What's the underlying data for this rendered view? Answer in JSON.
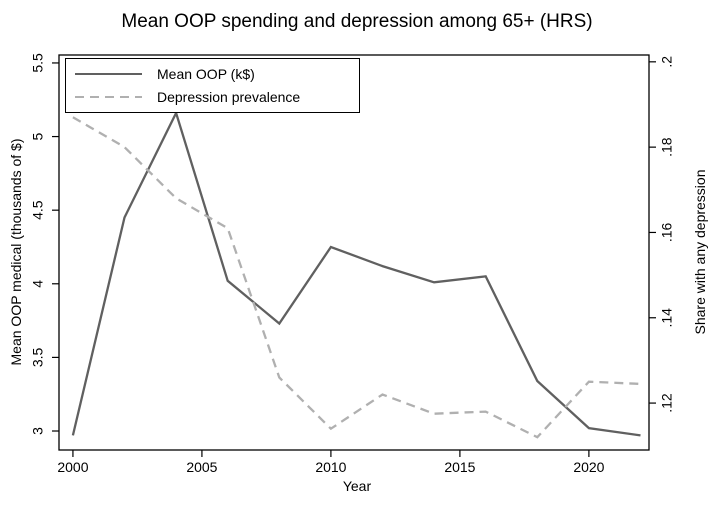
{
  "chart_data": {
    "type": "line",
    "title": "Mean OOP spending and depression among 65+ (HRS)",
    "xlabel": "Year",
    "x": [
      2000,
      2002,
      2004,
      2006,
      2008,
      2010,
      2012,
      2014,
      2016,
      2018,
      2020,
      2022
    ],
    "series": [
      {
        "name": "Mean OOP (k$)",
        "axis": "left",
        "line_style": "solid",
        "color": "#606060",
        "ylabel": "Mean OOP medical (thousands of $)",
        "values": [
          2.97,
          4.45,
          5.16,
          4.02,
          3.73,
          4.25,
          4.12,
          4.01,
          4.05,
          3.34,
          3.02,
          2.97
        ]
      },
      {
        "name": "Depression prevalence",
        "axis": "right",
        "line_style": "dashed",
        "color": "#b0b0b0",
        "ylabel": "Share with any depression",
        "values": [
          0.187,
          0.18,
          0.168,
          0.161,
          0.126,
          0.114,
          0.122,
          0.1175,
          0.118,
          0.112,
          0.125,
          0.1245
        ]
      }
    ],
    "legend_position": "top-left",
    "grid": false
  },
  "axes": {
    "x": {
      "title": "Year",
      "ticks": [
        2000,
        2005,
        2010,
        2015,
        2020
      ],
      "tick_labels": [
        "2000",
        "2005",
        "2010",
        "2015",
        "2020"
      ],
      "range": [
        1999.46,
        2022.33
      ]
    },
    "left": {
      "title": "Mean OOP medical (thousands of $)",
      "ticks": [
        3,
        3.5,
        4,
        4.5,
        5,
        5.5
      ],
      "tick_labels": [
        "3",
        "3.5",
        "4",
        "4.5",
        "5",
        "5.5"
      ],
      "range": [
        2.871,
        5.554
      ]
    },
    "right": {
      "title": "Share with any depression",
      "ticks": [
        0.12,
        0.14,
        0.16,
        0.18,
        0.2
      ],
      "tick_labels": [
        ".12",
        ".14",
        ".16",
        ".18",
        ".2"
      ],
      "range": [
        0.109,
        0.2016
      ]
    }
  },
  "legend": {
    "items": [
      {
        "label": "Mean OOP (k$)",
        "style": "solid",
        "color": "#606060"
      },
      {
        "label": "Depression prevalence",
        "style": "dashed",
        "color": "#b0b0b0"
      }
    ]
  },
  "colors": {
    "axis": "#000000",
    "background": "#ffffff",
    "solid_series": "#606060",
    "dashed_series": "#b0b0b0"
  }
}
